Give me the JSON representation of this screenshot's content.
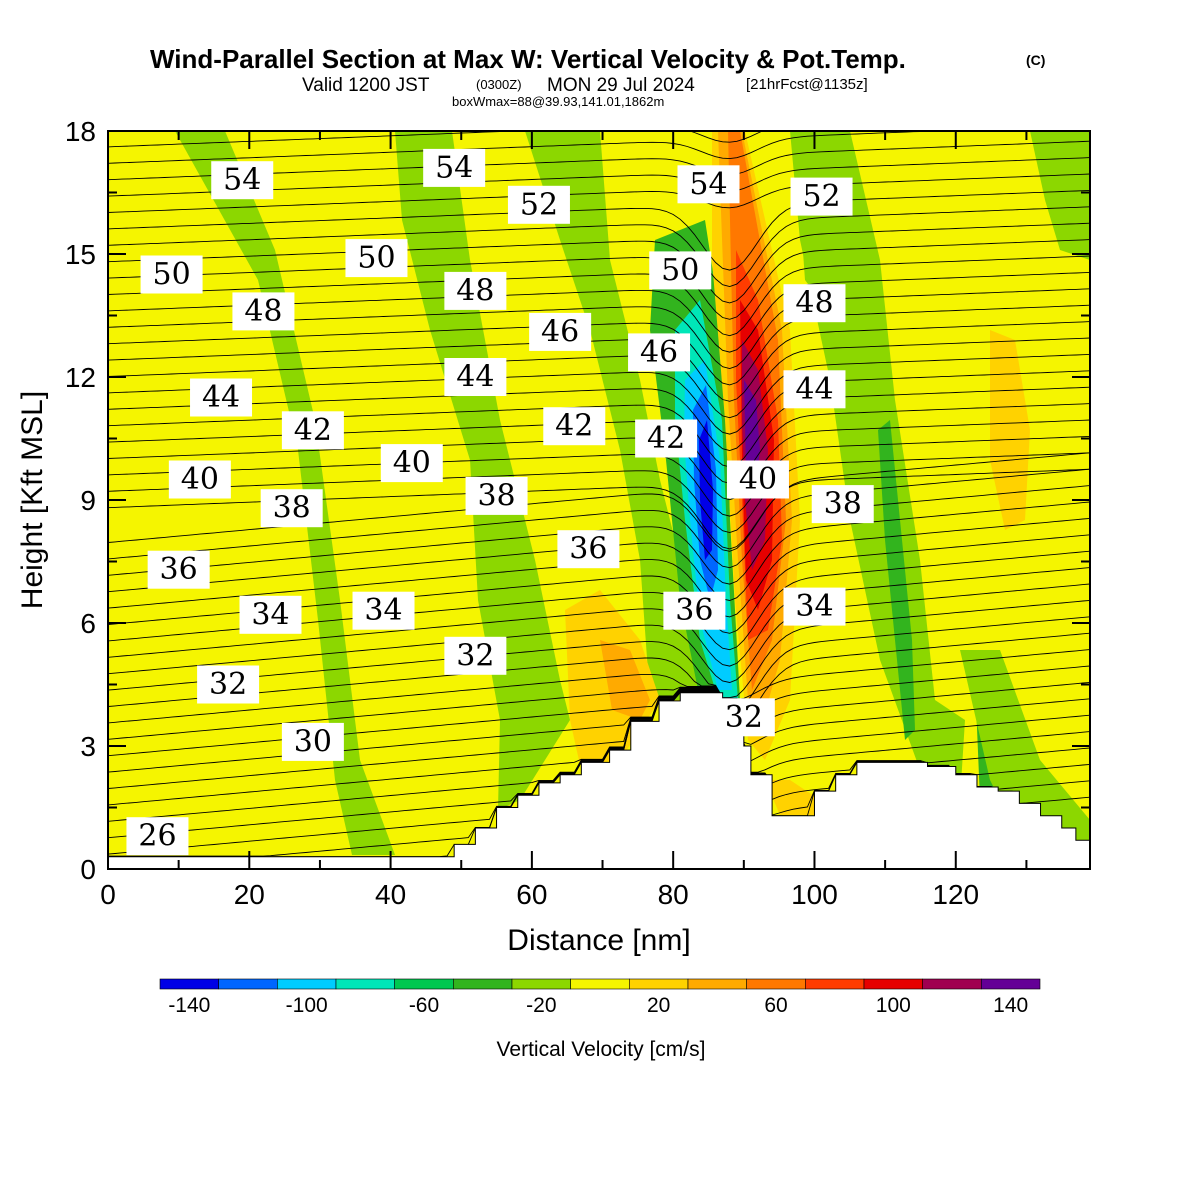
{
  "header": {
    "title": "Wind-Parallel Section at Max W: Vertical Velocity & Pot.Temp.",
    "copyright": "(C)",
    "valid_prefix": "Valid 1200 JST",
    "valid_utc": "(0300Z)",
    "valid_date": "MON 29 Jul 2024",
    "forecast": "[21hrFcst@1135z]",
    "boxwmax": "boxWmax=88@39.93,141.01,1862m"
  },
  "chart_data": {
    "type": "heatmap",
    "xlabel": "Distance [nm]",
    "ylabel": "Height [Kft MSL]",
    "xlim": [
      0,
      139
    ],
    "ylim": [
      0,
      18
    ],
    "x_ticks": [
      "0",
      "20",
      "40",
      "60",
      "80",
      "100",
      "120"
    ],
    "y_ticks": [
      "0",
      "3",
      "6",
      "9",
      "12",
      "15",
      "18"
    ],
    "colorbar": {
      "label": "Vertical Velocity [cm/s]",
      "tick_labels": [
        "-140",
        "-100",
        "-60",
        "-20",
        "20",
        "60",
        "100",
        "140"
      ],
      "colors": [
        "#0000e6",
        "#0066ff",
        "#00ccff",
        "#00e6b8",
        "#00c850",
        "#32b41e",
        "#8cd700",
        "#f5f500",
        "#ffd200",
        "#ffaa00",
        "#ff7800",
        "#ff3c00",
        "#e60000",
        "#a00050",
        "#640096"
      ]
    },
    "terrain_tops_kft": [
      {
        "x": 0,
        "h": 0.3
      },
      {
        "x": 48,
        "h": 0.3
      },
      {
        "x": 49,
        "h": 0.6
      },
      {
        "x": 52,
        "h": 1.0
      },
      {
        "x": 55,
        "h": 1.5
      },
      {
        "x": 58,
        "h": 1.8
      },
      {
        "x": 61,
        "h": 2.1
      },
      {
        "x": 64,
        "h": 2.3
      },
      {
        "x": 67,
        "h": 2.6
      },
      {
        "x": 71,
        "h": 2.9
      },
      {
        "x": 74,
        "h": 3.6
      },
      {
        "x": 78,
        "h": 4.1
      },
      {
        "x": 81,
        "h": 4.3
      },
      {
        "x": 84,
        "h": 4.3
      },
      {
        "x": 87,
        "h": 4.0
      },
      {
        "x": 90,
        "h": 3.0
      },
      {
        "x": 91,
        "h": 2.3
      },
      {
        "x": 94,
        "h": 1.3
      },
      {
        "x": 97,
        "h": 1.3
      },
      {
        "x": 100,
        "h": 1.9
      },
      {
        "x": 103,
        "h": 2.3
      },
      {
        "x": 106,
        "h": 2.6
      },
      {
        "x": 109,
        "h": 2.6
      },
      {
        "x": 113,
        "h": 2.6
      },
      {
        "x": 116,
        "h": 2.5
      },
      {
        "x": 120,
        "h": 2.3
      },
      {
        "x": 123,
        "h": 2.0
      },
      {
        "x": 126,
        "h": 1.9
      },
      {
        "x": 129,
        "h": 1.6
      },
      {
        "x": 132,
        "h": 1.3
      },
      {
        "x": 135,
        "h": 1.0
      },
      {
        "x": 137,
        "h": 0.7
      },
      {
        "x": 139,
        "h": 0.7
      }
    ],
    "theta_contours": [
      {
        "label": "26",
        "x": 7,
        "y": 0.8
      },
      {
        "label": "30",
        "x": 29,
        "y": 3.1
      },
      {
        "label": "32",
        "x": 17,
        "y": 4.5
      },
      {
        "label": "32",
        "x": 52,
        "y": 5.2
      },
      {
        "label": "32",
        "x": 90,
        "y": 3.7
      },
      {
        "label": "34",
        "x": 23,
        "y": 6.2
      },
      {
        "label": "34",
        "x": 39,
        "y": 6.3
      },
      {
        "label": "34",
        "x": 100,
        "y": 6.4
      },
      {
        "label": "36",
        "x": 10,
        "y": 7.3
      },
      {
        "label": "36",
        "x": 68,
        "y": 7.8
      },
      {
        "label": "36",
        "x": 83,
        "y": 6.3
      },
      {
        "label": "38",
        "x": 26,
        "y": 8.8
      },
      {
        "label": "38",
        "x": 55,
        "y": 9.1
      },
      {
        "label": "38",
        "x": 104,
        "y": 8.9
      },
      {
        "label": "40",
        "x": 13,
        "y": 9.5
      },
      {
        "label": "40",
        "x": 43,
        "y": 9.9
      },
      {
        "label": "40",
        "x": 92,
        "y": 9.5
      },
      {
        "label": "42",
        "x": 29,
        "y": 10.7
      },
      {
        "label": "42",
        "x": 66,
        "y": 10.8
      },
      {
        "label": "42",
        "x": 79,
        "y": 10.5
      },
      {
        "label": "44",
        "x": 16,
        "y": 11.5
      },
      {
        "label": "44",
        "x": 52,
        "y": 12.0
      },
      {
        "label": "44",
        "x": 100,
        "y": 11.7
      },
      {
        "label": "46",
        "x": 64,
        "y": 13.1
      },
      {
        "label": "46",
        "x": 78,
        "y": 12.6
      },
      {
        "label": "48",
        "x": 22,
        "y": 13.6
      },
      {
        "label": "48",
        "x": 52,
        "y": 14.1
      },
      {
        "label": "48",
        "x": 100,
        "y": 13.8
      },
      {
        "label": "50",
        "x": 9,
        "y": 14.5
      },
      {
        "label": "50",
        "x": 38,
        "y": 14.9
      },
      {
        "label": "50",
        "x": 81,
        "y": 14.6
      },
      {
        "label": "52",
        "x": 61,
        "y": 16.2
      },
      {
        "label": "52",
        "x": 101,
        "y": 16.4
      },
      {
        "label": "54",
        "x": 19,
        "y": 16.8
      },
      {
        "label": "54",
        "x": 49,
        "y": 17.1
      },
      {
        "label": "54",
        "x": 85,
        "y": 16.7
      }
    ]
  }
}
